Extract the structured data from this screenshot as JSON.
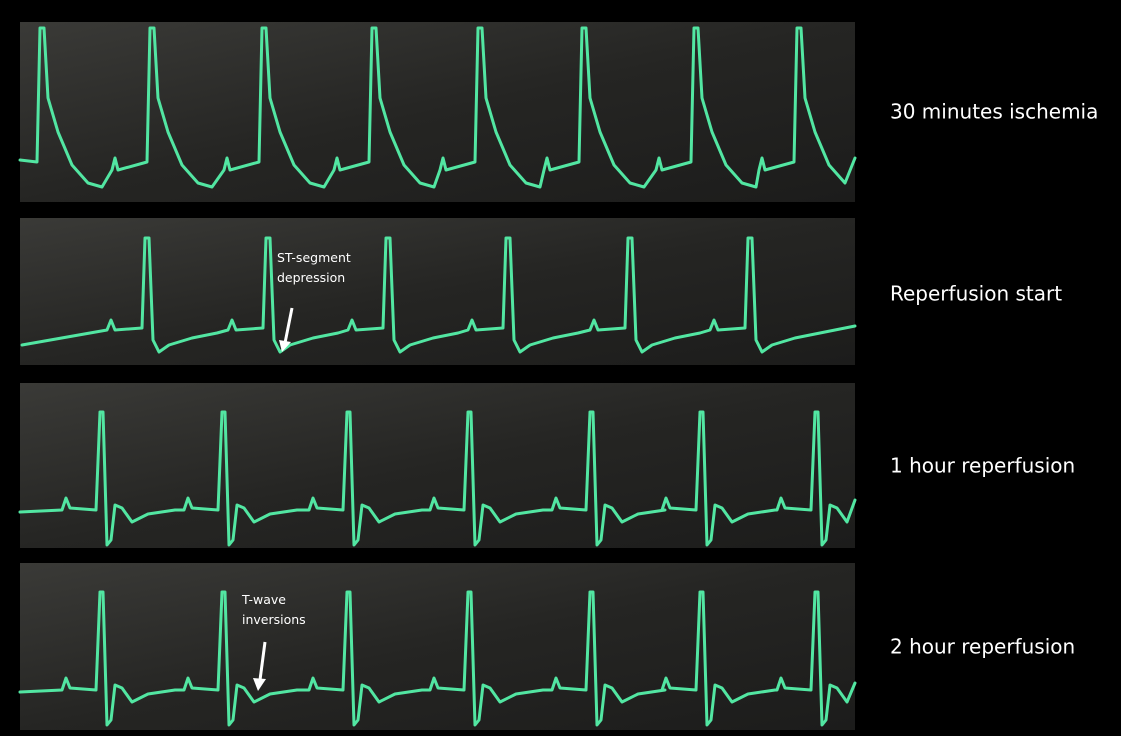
{
  "panels": [
    {
      "label": "30 minutes ischemia"
    },
    {
      "label": "Reperfusion start",
      "annotation": [
        "ST-segment",
        "depression"
      ]
    },
    {
      "label": "1 hour reperfusion"
    },
    {
      "label": "2 hour reperfusion",
      "annotation": [
        "T-wave",
        "inversions"
      ]
    }
  ]
}
